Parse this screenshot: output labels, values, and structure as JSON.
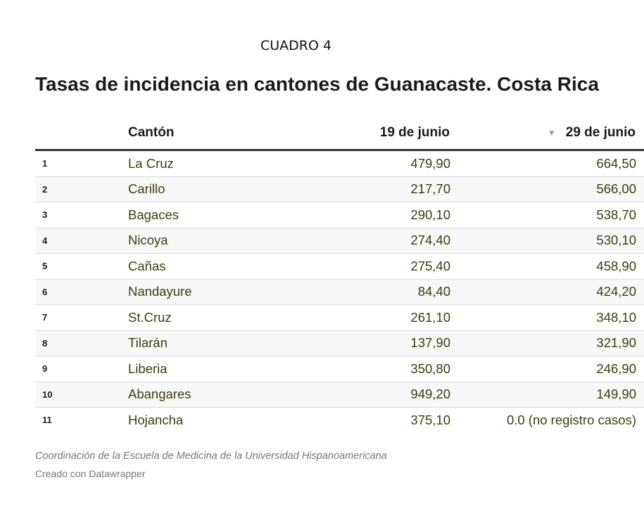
{
  "header": {
    "label": "CUADRO 4",
    "title": "Tasas de incidencia en cantones de Guanacaste. Costa Rica"
  },
  "chart_data": {
    "type": "table",
    "columns": [
      "",
      "Cantón",
      "19 de junio",
      "29 de junio"
    ],
    "sort_column": "29 de junio",
    "sort_direction": "descending",
    "rows": [
      {
        "rank": "1",
        "canton": "La Cruz",
        "jun19": "479,90",
        "jun29": "664,50"
      },
      {
        "rank": "2",
        "canton": "Carillo",
        "jun19": "217,70",
        "jun29": "566,00"
      },
      {
        "rank": "3",
        "canton": "Bagaces",
        "jun19": "290,10",
        "jun29": "538,70"
      },
      {
        "rank": "4",
        "canton": "Nicoya",
        "jun19": "274,40",
        "jun29": "530,10"
      },
      {
        "rank": "5",
        "canton": "Cañas",
        "jun19": "275,40",
        "jun29": "458,90"
      },
      {
        "rank": "6",
        "canton": "Nandayure",
        "jun19": "84,40",
        "jun29": "424,20"
      },
      {
        "rank": "7",
        "canton": "St.Cruz",
        "jun19": "261,10",
        "jun29": "348,10"
      },
      {
        "rank": "8",
        "canton": "Tilarán",
        "jun19": "137,90",
        "jun29": "321,90"
      },
      {
        "rank": "9",
        "canton": "Liberia",
        "jun19": "350,80",
        "jun29": "246,90"
      },
      {
        "rank": "10",
        "canton": "Abangares",
        "jun19": "949,20",
        "jun29": "149,90"
      },
      {
        "rank": "11",
        "canton": "Hojancha",
        "jun19": "375,10",
        "jun29": "0.0 (no registro casos)"
      }
    ]
  },
  "footer": {
    "source": "Coordinación de la Escuela de Medicina de la Universidad Hispanoamericana",
    "credit": "Creado con Datawrapper"
  },
  "colors": {
    "text": "#1a1a1a",
    "cell_text": "#3d3c11",
    "header_rule": "#333333",
    "row_alt": "#f8f8f8",
    "footer_text": "#777777"
  },
  "icons": {
    "sort": "sort-descending-icon"
  }
}
